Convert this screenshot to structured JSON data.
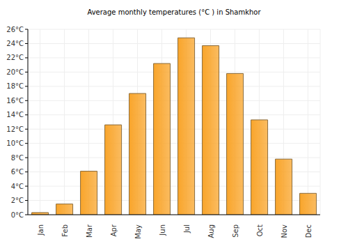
{
  "chart_data": {
    "type": "bar",
    "title": "Average monthly temperatures (°C ) in Shamkhor",
    "categories": [
      "Jan",
      "Feb",
      "Mar",
      "Apr",
      "May",
      "Jun",
      "Jul",
      "Aug",
      "Sep",
      "Oct",
      "Nov",
      "Dec"
    ],
    "values": [
      0.3,
      1.5,
      6.1,
      12.6,
      17.0,
      21.2,
      24.8,
      23.7,
      19.8,
      13.3,
      7.8,
      3.0
    ],
    "color": "#f9a52b",
    "ylim": [
      0,
      26
    ],
    "yticks": [
      {
        "value": 0,
        "label": "0°C"
      },
      {
        "value": 2,
        "label": "2°C"
      },
      {
        "value": 4,
        "label": "4°C"
      },
      {
        "value": 6,
        "label": "6°C"
      },
      {
        "value": 8,
        "label": "8°C"
      },
      {
        "value": 10,
        "label": "10°C"
      },
      {
        "value": 12,
        "label": "12°C"
      },
      {
        "value": 14,
        "label": "14°C"
      },
      {
        "value": 16,
        "label": "16°C"
      },
      {
        "value": 18,
        "label": "18°C"
      },
      {
        "value": 20,
        "label": "20°C"
      },
      {
        "value": 22,
        "label": "22°C"
      },
      {
        "value": 24,
        "label": "24°C"
      },
      {
        "value": 26,
        "label": "26°C"
      }
    ],
    "grid": true
  }
}
